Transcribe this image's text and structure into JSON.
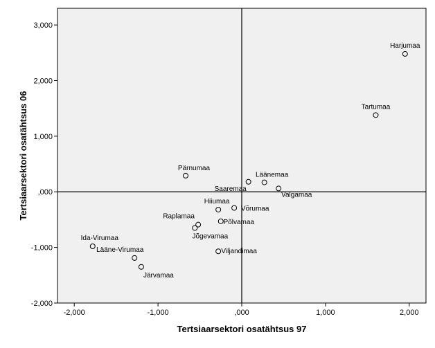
{
  "chart_data": {
    "type": "scatter",
    "xlabel": "Tertsiaarsektori osatähtsus 97",
    "ylabel": "Tertsiaarsektori osatähtsus 06",
    "xlim": [
      -2.2,
      2.2
    ],
    "ylim": [
      -2.0,
      3.3
    ],
    "xticks": [
      -2,
      -1,
      0,
      1,
      2
    ],
    "xtick_labels": [
      "-2,000",
      "-1,000",
      ",000",
      "1,000",
      "2,000"
    ],
    "yticks": [
      -2,
      -1,
      0,
      1,
      2,
      3
    ],
    "ytick_labels": [
      "-2,000",
      "-1,000",
      ",000",
      "1,000",
      "2,000",
      "3,000"
    ],
    "reference_lines": {
      "x": 0,
      "y": 0
    },
    "grid": false,
    "background_color": "#f0f0f0",
    "marker": "open-circle",
    "points": [
      {
        "label": "Harjumaa",
        "x": 1.95,
        "y": 2.48
      },
      {
        "label": "Tartumaa",
        "x": 1.6,
        "y": 1.38
      },
      {
        "label": "Läänemaa",
        "x": 0.27,
        "y": 0.17
      },
      {
        "label": "Saaremaa",
        "x": 0.08,
        "y": 0.18
      },
      {
        "label": "Valgamaa",
        "x": 0.44,
        "y": 0.06
      },
      {
        "label": "Pärnumaa",
        "x": -0.67,
        "y": 0.29
      },
      {
        "label": "Hiiumaa",
        "x": -0.28,
        "y": -0.32
      },
      {
        "label": "Võrumaa",
        "x": -0.09,
        "y": -0.29
      },
      {
        "label": "Põlvamaa",
        "x": -0.25,
        "y": -0.53
      },
      {
        "label": "Raplamaa",
        "x": -0.52,
        "y": -0.59
      },
      {
        "label": "Jõgevamaa",
        "x": -0.56,
        "y": -0.65
      },
      {
        "label": "Viljandimaa",
        "x": -0.28,
        "y": -1.07
      },
      {
        "label": "Ida-Virumaa",
        "x": -1.78,
        "y": -0.98
      },
      {
        "label": "Lääne-Virumaa",
        "x": -1.28,
        "y": -1.19
      },
      {
        "label": "Järvamaa",
        "x": -1.2,
        "y": -1.35
      }
    ]
  }
}
